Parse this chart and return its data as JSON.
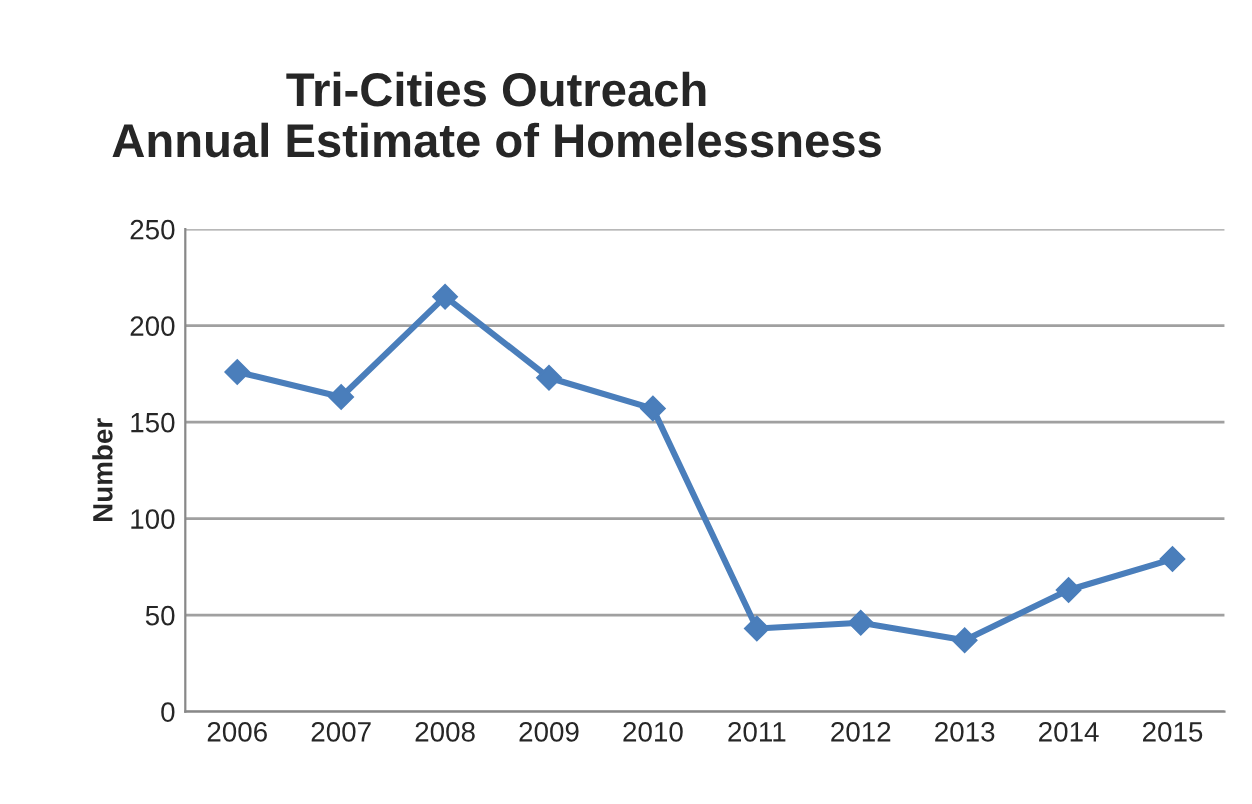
{
  "chart_data": {
    "type": "line",
    "title": "Tri-Cities Outreach\nAnnual Estimate of Homelessness",
    "ylabel": "Number",
    "categories": [
      "2006",
      "2007",
      "2008",
      "2009",
      "2010",
      "2011",
      "2012",
      "2013",
      "2014",
      "2015"
    ],
    "series": [
      {
        "color": "#4a7ebb",
        "values": [
          176,
          163,
          215,
          173,
          157,
          43,
          46,
          37,
          63,
          79
        ]
      }
    ],
    "ylim": [
      0,
      250
    ],
    "yticks": [
      0,
      50,
      100,
      150,
      200,
      250
    ],
    "grid": "y",
    "marker": "diamond",
    "line_style": "solid"
  }
}
